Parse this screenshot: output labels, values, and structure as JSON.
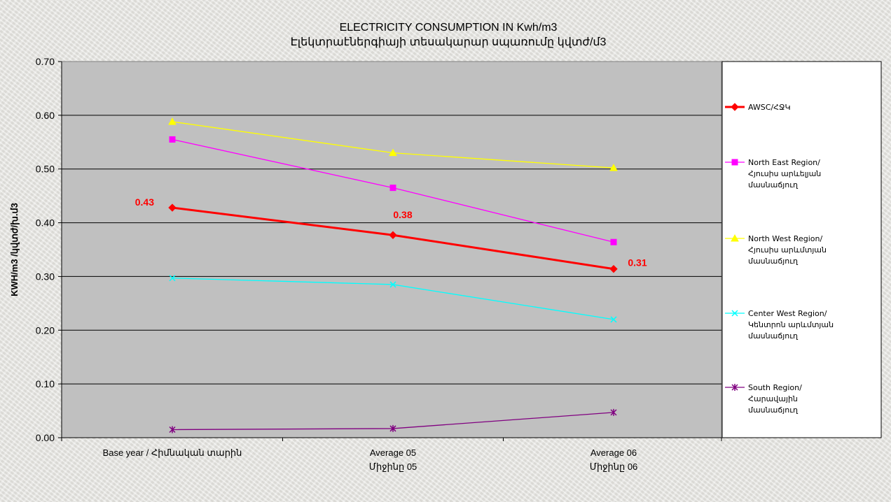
{
  "chart_data": {
    "type": "line",
    "title": "ELECTRICITY CONSUMPTION IN Kwh/m3",
    "subtitle": "Էլեկտրաէներգիայի տեսակարար սպառումը կվտժ/մ3",
    "ylabel": "KWH/m3  /կվտժ/խ.մ3",
    "xlabel": "",
    "ylim": [
      0,
      0.7
    ],
    "yticks": [
      "0.00",
      "0.10",
      "0.20",
      "0.30",
      "0.40",
      "0.50",
      "0.60",
      "0.70"
    ],
    "grid": true,
    "legend_position": "right",
    "categories": [
      [
        "Base year / Հիմնական տարին"
      ],
      [
        "Average 05",
        "Միջինը 05"
      ],
      [
        "Average 06",
        "Միջինը 06"
      ]
    ],
    "series": [
      {
        "name_lines": [
          "AWSC/ՀՋԿ"
        ],
        "color": "#ff0000",
        "marker": "diamond",
        "values": [
          0.428,
          0.377,
          0.314
        ],
        "data_labels": [
          "0.43",
          "0.38",
          "0.31"
        ]
      },
      {
        "name_lines": [
          "North East Region/",
          "Հյուսիս արևելյան",
          "մասնաճյուղ"
        ],
        "color": "#ff00ff",
        "marker": "square",
        "values": [
          0.555,
          0.465,
          0.364
        ]
      },
      {
        "name_lines": [
          "North West Region/",
          "Հյուսիս արևմտյան",
          "մասնաճյուղ"
        ],
        "color": "#ffff00",
        "marker": "triangle",
        "values": [
          0.588,
          0.53,
          0.502
        ]
      },
      {
        "name_lines": [
          "Center West Region/",
          "Կենտրոն արևմտյան",
          "մասնաճյուղ"
        ],
        "color": "#00ffff",
        "marker": "x",
        "values": [
          0.297,
          0.285,
          0.22
        ]
      },
      {
        "name_lines": [
          "South Region/",
          "Հարավային",
          "մասնաճյուղ"
        ],
        "color": "#800080",
        "marker": "star",
        "values": [
          0.015,
          0.017,
          0.047
        ]
      }
    ]
  }
}
